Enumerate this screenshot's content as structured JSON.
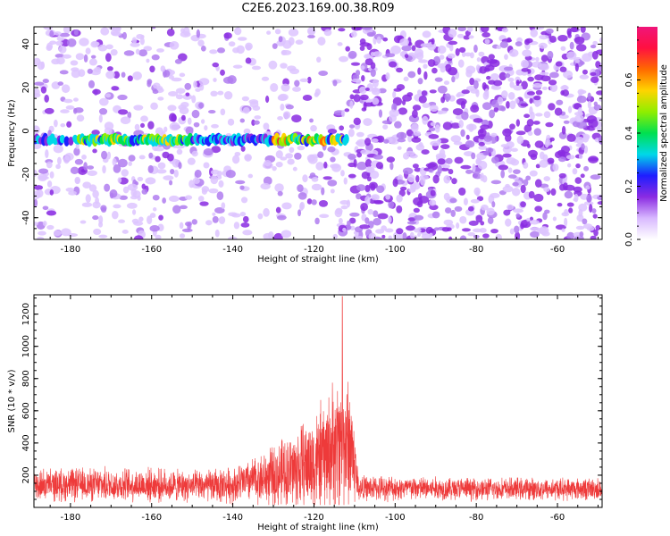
{
  "figure": {
    "title": "C2E6.2023.169.00.38.R09"
  },
  "chart_data": [
    {
      "type": "heatmap",
      "xlabel": "Height of straight line (km)",
      "ylabel": "Frequency (Hz)",
      "xlim": [
        -189,
        -49
      ],
      "ylim": [
        -50,
        48
      ],
      "x_ticks": [
        -180,
        -160,
        -140,
        -120,
        -100,
        -80,
        -60
      ],
      "y_ticks": [
        -40,
        -20,
        0,
        20,
        40
      ],
      "x_tick_labels": [
        "-180",
        "-160",
        "-140",
        "-120",
        "-100",
        "-80",
        "-60"
      ],
      "y_tick_labels": [
        "-40",
        "-20",
        "0",
        "20",
        "40"
      ],
      "colorbar": {
        "label": "Normalized spectral amplitude",
        "range": [
          0,
          0.8
        ],
        "ticks": [
          0.0,
          0.2,
          0.4,
          0.6
        ],
        "tick_labels": [
          "0.0",
          "0.2",
          "0.4",
          "0.6"
        ],
        "colormap": [
          "#ffffff",
          "#d8b8ff",
          "#8a2be2",
          "#1e1eff",
          "#00d8e8",
          "#00e050",
          "#90ee00",
          "#ffd400",
          "#ff6a00",
          "#ff1040",
          "#f0157a"
        ]
      },
      "signal_band": {
        "frequency_center_hz": -4,
        "x_range": [
          -189,
          -112
        ],
        "peak_amplitude_x": [
          -120,
          -113
        ]
      },
      "regions": [
        {
          "x_range": [
            -189,
            -112
          ],
          "background_density": "moderate"
        },
        {
          "x_range": [
            -150,
            -111
          ],
          "background_density": "sparse"
        },
        {
          "x_range": [
            -111,
            -49
          ],
          "background_density": "dense"
        }
      ],
      "grid": false,
      "legend": "colorbar-right"
    },
    {
      "type": "line",
      "xlabel": "Height of straight line (km)",
      "ylabel": "SNR (10 * v/v)",
      "xlim": [
        -189,
        -49
      ],
      "ylim": [
        0,
        1320
      ],
      "x_ticks": [
        -180,
        -160,
        -140,
        -120,
        -100,
        -80,
        -60
      ],
      "y_ticks": [
        200,
        400,
        600,
        800,
        1000,
        1200
      ],
      "x_tick_labels": [
        "-180",
        "-160",
        "-140",
        "-120",
        "-100",
        "-80",
        "-60"
      ],
      "y_tick_labels": [
        "200",
        "400",
        "600",
        "800",
        "1000",
        "1200"
      ],
      "line_color": "#ee3a3a",
      "envelope": {
        "x": [
          -189,
          -180,
          -170,
          -160,
          -150,
          -140,
          -135,
          -130,
          -125,
          -120,
          -117,
          -115,
          -113,
          -111,
          -109,
          -100,
          -80,
          -60,
          -49
        ],
        "baseline": [
          140,
          140,
          140,
          140,
          130,
          140,
          170,
          190,
          230,
          280,
          320,
          380,
          420,
          400,
          120,
          120,
          115,
          115,
          115
        ],
        "spread": [
          110,
          120,
          120,
          120,
          110,
          130,
          160,
          220,
          300,
          360,
          420,
          470,
          500,
          480,
          90,
          90,
          80,
          80,
          80
        ]
      },
      "peak": {
        "x": -113,
        "y": 1310
      },
      "grid": false
    }
  ]
}
